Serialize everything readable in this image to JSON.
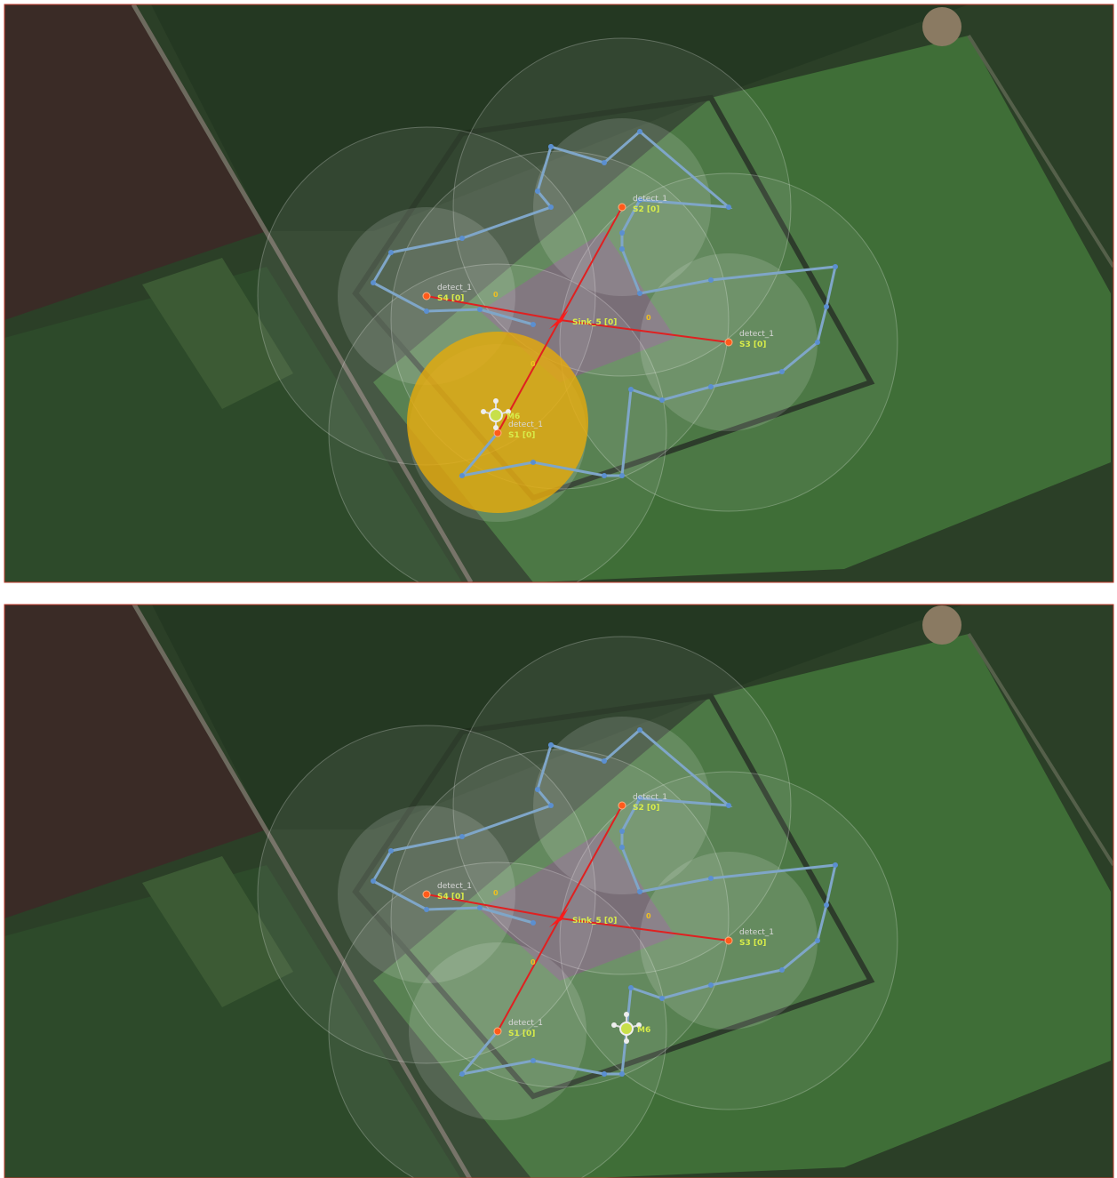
{
  "panels": [
    {
      "sensors": [
        {
          "name": "detect_1",
          "status": "S1 [0]"
        },
        {
          "name": "detect_1",
          "status": "S2 [0]"
        },
        {
          "name": "detect_1",
          "status": "S3 [0]"
        },
        {
          "name": "detect_1",
          "status": "S4 [0]"
        }
      ],
      "sink": "Sink_5 [0]",
      "mobile": "M6",
      "counters": [
        "0",
        "0",
        "0"
      ]
    },
    {
      "sensors": [
        {
          "name": "detect_1",
          "status": "S1 [0]"
        },
        {
          "name": "detect_1",
          "status": "S2 [0]"
        },
        {
          "name": "detect_1",
          "status": "S3 [0]"
        },
        {
          "name": "detect_1",
          "status": "S4 [0]"
        }
      ],
      "sink": "Sink_5 [0]",
      "mobile": "M6",
      "counters": [
        "0",
        "0",
        "0"
      ]
    }
  ]
}
